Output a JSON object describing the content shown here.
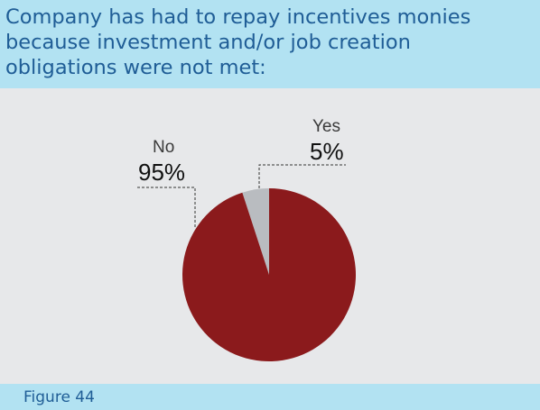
{
  "title": "Company has had to repay incentives monies because investment and/or job creation obligations were not met:",
  "title_lines": [
    "Company has had to repay incentives monies",
    "because investment and/or job creation",
    "obligations were not met:"
  ],
  "figure_label": "Figure 44",
  "colors": {
    "title_band": "#b2e2f2",
    "title_text": "#1f5d96",
    "chart_background": "#e7e8ea",
    "no_slice": "#8b1a1c",
    "yes_slice": "#b9bcc0"
  },
  "chart_data": {
    "type": "pie",
    "title": "Company has had to repay incentives monies because investment and/or job creation obligations were not met:",
    "slices": [
      {
        "label": "Yes",
        "value": 5,
        "display": "5%",
        "color": "#b9bcc0"
      },
      {
        "label": "No",
        "value": 95,
        "display": "95%",
        "color": "#8b1a1c"
      }
    ],
    "start": "12 o'clock",
    "direction": "counter-clockwise",
    "legend": "none"
  }
}
